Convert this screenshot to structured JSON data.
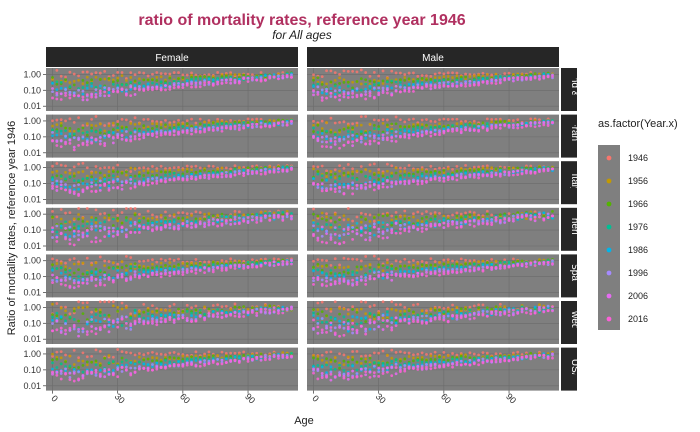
{
  "chart_data": {
    "type": "scatter",
    "title": "ratio of mortality rates, reference year 1946",
    "subtitle": "for All ages",
    "xlabel": "Age",
    "ylabel": "Ratio of mortality rates, reference year 1946",
    "x_ticks": [
      0,
      30,
      60,
      90
    ],
    "x_range": [
      -3,
      113
    ],
    "y_scale": "log10",
    "y_ticks": [
      1.0,
      0.1,
      0.01
    ],
    "y_tick_labels": [
      "1.00",
      "0.10",
      "0.01"
    ],
    "y_range": [
      0.005,
      2.5
    ],
    "columns": [
      "Female",
      "Male"
    ],
    "rows": [
      "England & Wales",
      "France",
      "Italy",
      "Netherlands",
      "Spain",
      "Sweden",
      "USA"
    ],
    "legend": {
      "title": "as.factor(Year.x)",
      "position": "right",
      "entries": [
        {
          "label": "1946",
          "color": "#F8766D"
        },
        {
          "label": "1956",
          "color": "#C49A00"
        },
        {
          "label": "1966",
          "color": "#53B400"
        },
        {
          "label": "1976",
          "color": "#00C094"
        },
        {
          "label": "1986",
          "color": "#00B6EB"
        },
        {
          "label": "1996",
          "color": "#A58AFF"
        },
        {
          "label": "2006",
          "color": "#E76BF3"
        },
        {
          "label": "2016",
          "color": "#FB61D7"
        }
      ]
    },
    "series_curves": [
      {
        "year": "1946",
        "age0": 1.0,
        "min": 1.0,
        "age_min": 10,
        "age110": 1.0
      },
      {
        "year": "1956",
        "age0": 0.55,
        "min": 0.35,
        "age_min": 10,
        "age110": 0.95
      },
      {
        "year": "1966",
        "age0": 0.38,
        "min": 0.22,
        "age_min": 10,
        "age110": 0.92
      },
      {
        "year": "1976",
        "age0": 0.24,
        "min": 0.12,
        "age_min": 10,
        "age110": 0.88
      },
      {
        "year": "1986",
        "age0": 0.14,
        "min": 0.07,
        "age_min": 10,
        "age110": 0.84
      },
      {
        "year": "1996",
        "age0": 0.1,
        "min": 0.05,
        "age_min": 10,
        "age110": 0.8
      },
      {
        "year": "2006",
        "age0": 0.07,
        "min": 0.035,
        "age_min": 10,
        "age110": 0.77
      },
      {
        "year": "2016",
        "age0": 0.06,
        "min": 0.03,
        "age_min": 10,
        "age110": 0.74
      }
    ]
  }
}
